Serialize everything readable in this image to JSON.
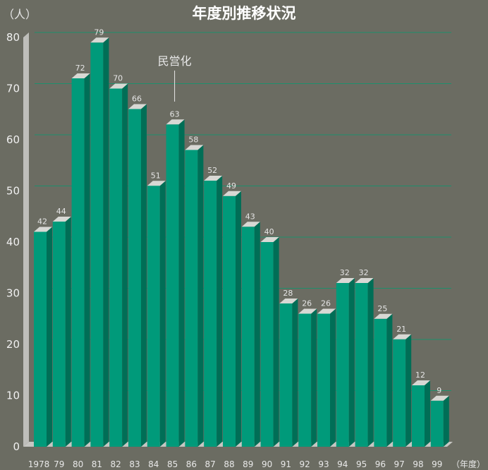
{
  "chart_data": {
    "type": "bar",
    "title": "年度別推移状況",
    "y_unit_label": "（人）",
    "x_unit_label": "（年度）",
    "categories": [
      "1978",
      "79",
      "80",
      "81",
      "82",
      "83",
      "84",
      "85",
      "86",
      "87",
      "88",
      "89",
      "90",
      "91",
      "92",
      "93",
      "94",
      "95",
      "96",
      "97",
      "98",
      "99"
    ],
    "values": [
      42,
      44,
      72,
      79,
      70,
      66,
      51,
      63,
      58,
      52,
      49,
      43,
      40,
      28,
      26,
      26,
      32,
      32,
      25,
      21,
      12,
      9
    ],
    "ylim": [
      0,
      80
    ],
    "yticks": [
      0,
      10,
      20,
      30,
      40,
      50,
      60,
      70,
      80
    ],
    "grid": true,
    "annotation": {
      "text": "民営化",
      "category": "85"
    }
  },
  "colors": {
    "background": "#6b6c62",
    "bar_front": "#009a7a",
    "bar_side": "#006e56",
    "bar_top": "#d8d8d4",
    "gridline": "#1d8f6c",
    "floor": "#c6c6c2",
    "wall": "#bebeba"
  }
}
